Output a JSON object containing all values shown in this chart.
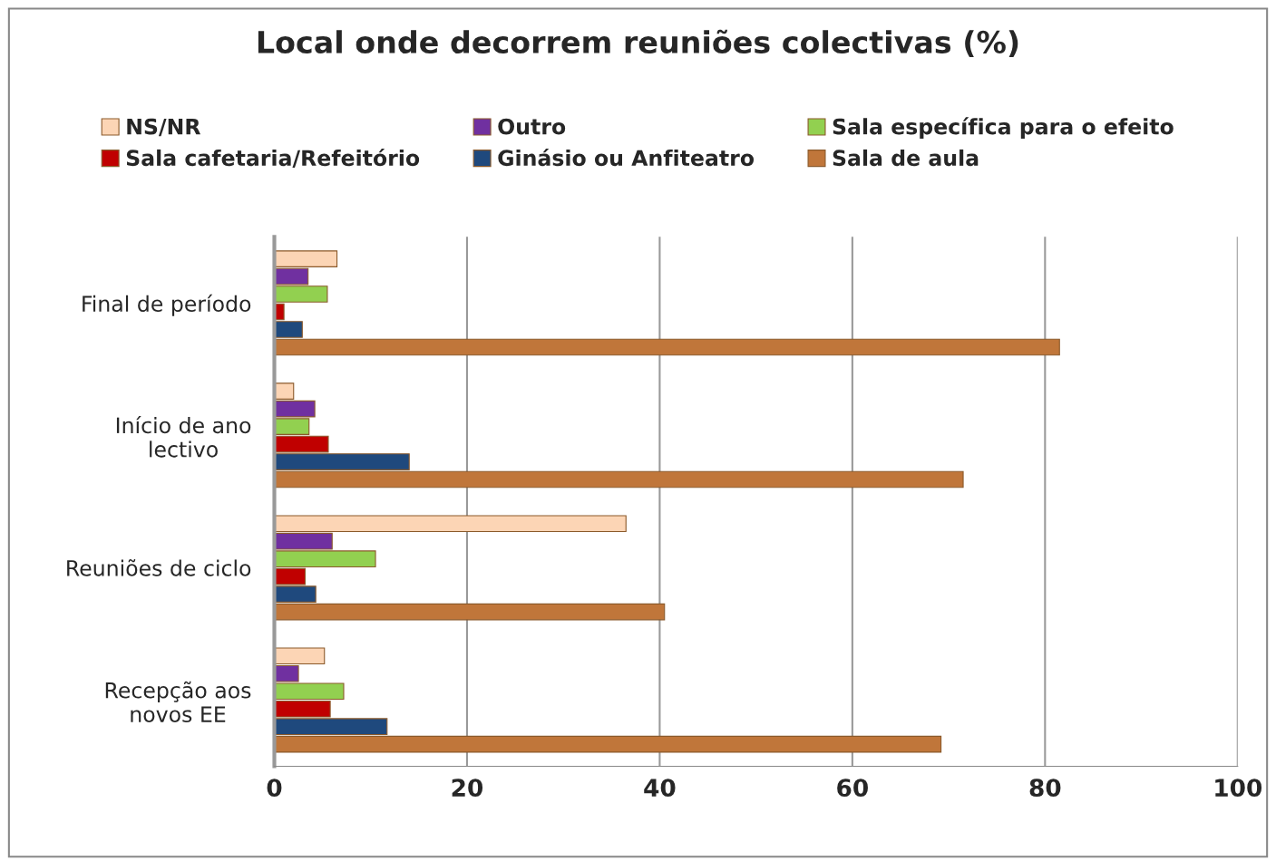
{
  "chart_data": {
    "type": "bar",
    "orientation": "horizontal",
    "title": "Local onde decorrem reuniões colectivas (%)",
    "categories": [
      "Final de período",
      "Início de ano lectivo",
      "Reuniões de ciclo",
      "Recepção aos novos EE"
    ],
    "series": [
      {
        "name": "NS/NR",
        "color": "#fcd5b5",
        "values": [
          6.5,
          2,
          36.5,
          5.2
        ]
      },
      {
        "name": "Outro",
        "color": "#7030a0",
        "values": [
          3.5,
          4.2,
          6,
          2.5
        ]
      },
      {
        "name": "Sala específica para o efeito",
        "color": "#92d050",
        "values": [
          5.5,
          3.6,
          10.5,
          7.2
        ]
      },
      {
        "name": "Sala cafetaria/Refeitório",
        "color": "#c00000",
        "values": [
          1,
          5.6,
          3.2,
          5.8
        ]
      },
      {
        "name": "Ginásio ou Anfiteatro",
        "color": "#1f497d",
        "values": [
          2.9,
          14,
          4.3,
          11.7
        ]
      },
      {
        "name": "Sala de aula",
        "color": "#c0763a",
        "values": [
          81.5,
          71.5,
          40.5,
          69.2
        ]
      }
    ],
    "xlim": [
      0,
      100
    ],
    "xticks": [
      0,
      20,
      40,
      60,
      80,
      100
    ],
    "grid": "x",
    "legend": "top"
  }
}
